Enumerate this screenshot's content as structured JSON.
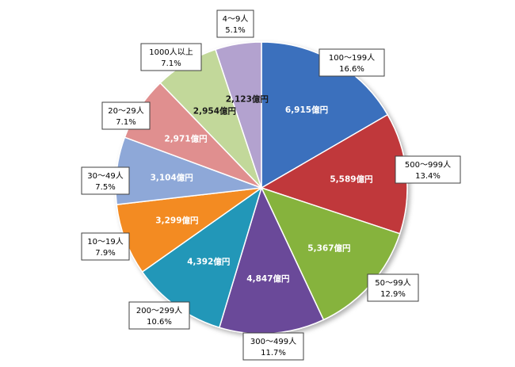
{
  "chart_data": {
    "type": "pie",
    "unit": "億円",
    "slices": [
      {
        "category": "100〜199人",
        "value": 6915,
        "value_label": "6,915億円",
        "percent": "16.6%",
        "color": "#3a6fbd",
        "label_color": "#ffffff"
      },
      {
        "category": "500〜999人",
        "value": 5589,
        "value_label": "5,589億円",
        "percent": "13.4%",
        "color": "#c0373a",
        "label_color": "#ffffff"
      },
      {
        "category": "50〜99人",
        "value": 5367,
        "value_label": "5,367億円",
        "percent": "12.9%",
        "color": "#86b33d",
        "label_color": "#ffffff"
      },
      {
        "category": "300〜499人",
        "value": 4847,
        "value_label": "4,847億円",
        "percent": "11.7%",
        "color": "#6b4a99",
        "label_color": "#ffffff"
      },
      {
        "category": "200〜299人",
        "value": 4392,
        "value_label": "4,392億円",
        "percent": "10.6%",
        "color": "#2497b8",
        "label_color": "#ffffff"
      },
      {
        "category": "10〜19人",
        "value": 3299,
        "value_label": "3,299億円",
        "percent": "7.9%",
        "color": "#f38b20",
        "label_color": "#ffffff"
      },
      {
        "category": "30〜49人",
        "value": 3104,
        "value_label": "3,104億円",
        "percent": "7.5%",
        "color": "#8ea8d8",
        "label_color": "#ffffff"
      },
      {
        "category": "20〜29人",
        "value": 2971,
        "value_label": "2,971億円",
        "percent": "7.1%",
        "color": "#e08f8f",
        "label_color": "#ffffff"
      },
      {
        "category": "1000人以上",
        "value": 2954,
        "value_label": "2,954億円",
        "percent": "7.1%",
        "color": "#c2d89a",
        "label_color": "#1a1a1a"
      },
      {
        "category": "4〜9人",
        "value": 2123,
        "value_label": "2,123億円",
        "percent": "5.1%",
        "color": "#b3a2cf",
        "label_color": "#1a1a1a"
      }
    ]
  }
}
